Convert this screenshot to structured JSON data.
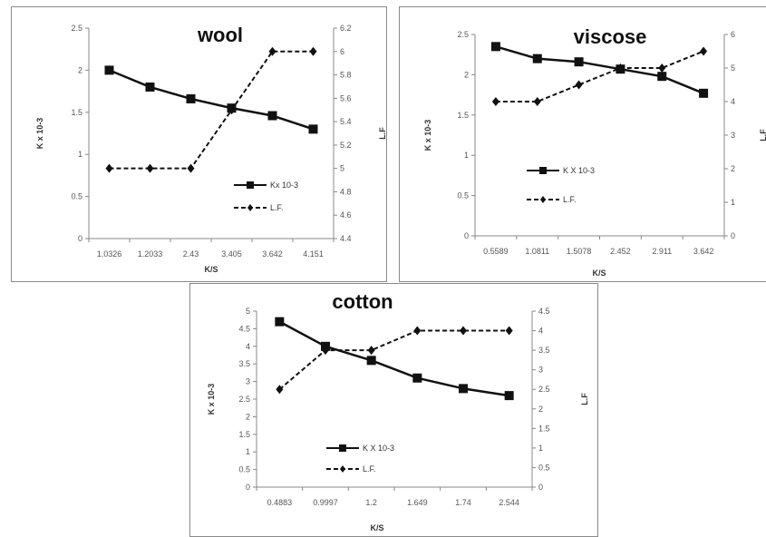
{
  "chart_data": [
    {
      "type": "line",
      "title": "wool",
      "categories": [
        "1.0326",
        "1.2033",
        "2.43",
        "3.405",
        "3.642",
        "4.151"
      ],
      "xlabel": "K/S",
      "ylabel": "K x 10-3",
      "y2label": "L.F",
      "ylim": [
        0,
        2.5
      ],
      "y2lim": [
        4.4,
        6.2
      ],
      "yticks": [
        "0",
        "0.5",
        "1",
        "1.5",
        "2",
        "2.5"
      ],
      "y2ticks": [
        "4.4",
        "4.6",
        "4.8",
        "5",
        "5.2",
        "5.4",
        "5.6",
        "5.8",
        "6",
        "6.2"
      ],
      "series": [
        {
          "name": "Kx 10-3",
          "axis": "left",
          "style": "solid",
          "marker": "square",
          "values": [
            2.0,
            1.8,
            1.66,
            1.55,
            1.46,
            1.3
          ]
        },
        {
          "name": "L.F.",
          "axis": "right",
          "style": "dashed",
          "marker": "diamond",
          "values": [
            5.0,
            5.0,
            5.0,
            5.5,
            6.0,
            6.0
          ]
        }
      ],
      "legend": "bottom-right"
    },
    {
      "type": "line",
      "title": "viscose",
      "categories": [
        "0.5589",
        "1.0811",
        "1.5078",
        "2.452",
        "2.911",
        "3.642"
      ],
      "xlabel": "K/S",
      "ylabel": "K x 10-3",
      "y2label": "L.F",
      "ylim": [
        0,
        2.5
      ],
      "y2lim": [
        0,
        6
      ],
      "yticks": [
        "0",
        "0.5",
        "1",
        "1.5",
        "2",
        "2.5"
      ],
      "y2ticks": [
        "0",
        "1",
        "2",
        "3",
        "4",
        "5",
        "6"
      ],
      "series": [
        {
          "name": "K X 10-3",
          "axis": "left",
          "style": "solid",
          "marker": "square",
          "values": [
            2.35,
            2.2,
            2.16,
            2.07,
            1.98,
            1.77
          ]
        },
        {
          "name": "L.F.",
          "axis": "right",
          "style": "dashed",
          "marker": "diamond",
          "values": [
            4.0,
            4.0,
            4.5,
            5.0,
            5.0,
            5.5
          ]
        }
      ],
      "legend": "bottom-left"
    },
    {
      "type": "line",
      "title": "cotton",
      "categories": [
        "0.4883",
        "0.9997",
        "1.2",
        "1.649",
        "1.74",
        "2.544"
      ],
      "xlabel": "K/S",
      "ylabel": "K x 10-3",
      "y2label": "L.F",
      "ylim": [
        0,
        5
      ],
      "y2lim": [
        0,
        4.5
      ],
      "yticks": [
        "0",
        "0.5",
        "1",
        "1.5",
        "2",
        "2.5",
        "3",
        "3.5",
        "4",
        "4.5",
        "5"
      ],
      "y2ticks": [
        "0",
        "0.5",
        "1",
        "1.5",
        "2",
        "2.5",
        "3",
        "3.5",
        "4",
        "4.5"
      ],
      "series": [
        {
          "name": "K X 10-3",
          "axis": "left",
          "style": "solid",
          "marker": "square",
          "values": [
            4.7,
            4.0,
            3.6,
            3.1,
            2.8,
            2.6
          ]
        },
        {
          "name": "L.F.",
          "axis": "right",
          "style": "dashed",
          "marker": "diamond",
          "values": [
            2.5,
            3.5,
            3.5,
            4.0,
            4.0,
            4.0
          ]
        }
      ],
      "legend": "bottom-left"
    }
  ]
}
